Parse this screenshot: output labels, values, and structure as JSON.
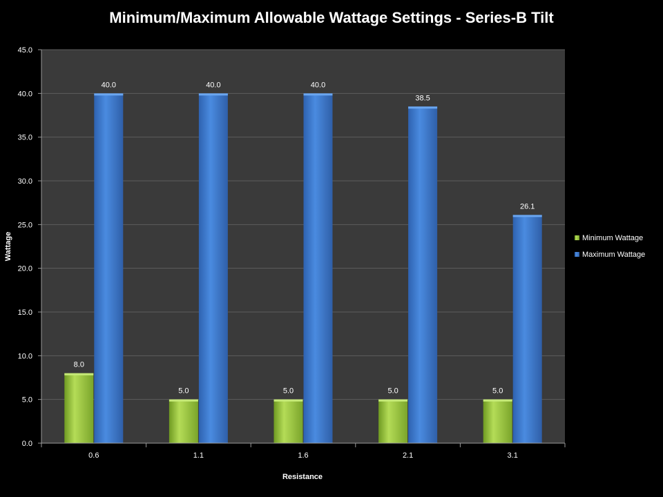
{
  "chart_data": {
    "type": "bar",
    "title": "Minimum/Maximum Allowable Wattage Settings - Series-B Tilt",
    "xlabel": "Resistance",
    "ylabel": "Wattage",
    "categories": [
      "0.6",
      "1.1",
      "1.6",
      "2.1",
      "3.1"
    ],
    "series": [
      {
        "name": "Minimum Wattage",
        "values": [
          8.0,
          5.0,
          5.0,
          5.0,
          5.0
        ],
        "color": "#9bc83a",
        "data_labels": [
          "8.0",
          "5.0",
          "5.0",
          "5.0",
          "5.0"
        ]
      },
      {
        "name": "Maximum Wattage",
        "values": [
          40.0,
          40.0,
          40.0,
          38.5,
          26.1
        ],
        "color": "#3a78d0",
        "data_labels": [
          "40.0",
          "40.0",
          "40.0",
          "38.5",
          "26.1"
        ]
      }
    ],
    "ylim": [
      0,
      45
    ],
    "yticks": [
      "0.0",
      "5.0",
      "10.0",
      "15.0",
      "20.0",
      "25.0",
      "30.0",
      "35.0",
      "40.0",
      "45.0"
    ],
    "grid": true,
    "legend_position": "right",
    "colors": {
      "background": "#000000",
      "plot_area": "#3a3a3a",
      "gridline": "#5e5e5e",
      "text": "#ffffff"
    }
  }
}
